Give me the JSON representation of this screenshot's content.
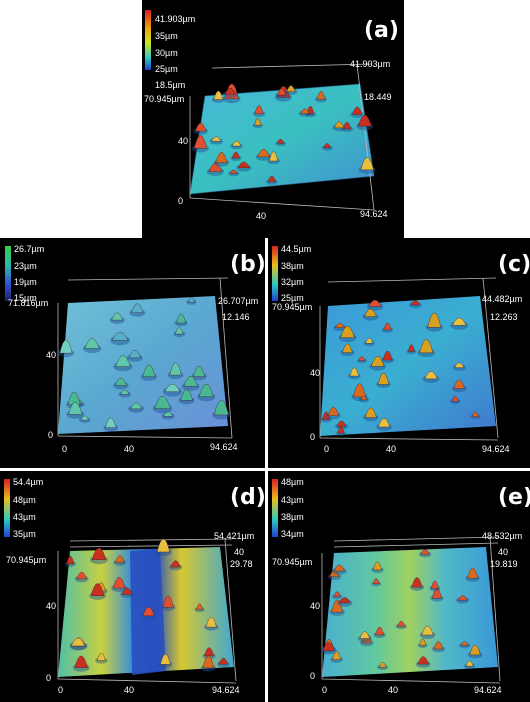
{
  "panels": {
    "a": {
      "label": "(a)",
      "colorbar": [
        "41.903µm",
        "35µm",
        "30µm",
        "25µm",
        "18.5µm"
      ],
      "colors": [
        "#d62020",
        "#f0a010",
        "#c8e820",
        "#30c8c0",
        "#2040d0"
      ],
      "z_top": "41.903µm",
      "z_low": "18.449",
      "y_top": "70.945µm",
      "y_mid": "40",
      "origin": "0",
      "x_mid": "40",
      "x_end": "94.624"
    },
    "b": {
      "label": "(b)",
      "colorbar": [
        "26.7µm",
        "23µm",
        "19µm",
        "15µm"
      ],
      "colors": [
        "#30d040",
        "#30b8b0",
        "#3050d0",
        "#202060"
      ],
      "z_top": "26.707µm",
      "z_low": "12.146",
      "y_top": "71.816µm",
      "y_mid": "40",
      "origin": "0",
      "x_mid": "40",
      "x_end": "94.624"
    },
    "c": {
      "label": "(c)",
      "colorbar": [
        "44.5µm",
        "38µm",
        "32µm",
        "25µm"
      ],
      "colors": [
        "#d62020",
        "#e8c020",
        "#30c8c0",
        "#2040d0"
      ],
      "z_top": "44.482µm",
      "z_low": "12.263",
      "y_top": "70.945µm",
      "y_mid": "40",
      "origin": "0",
      "x_mid": "40",
      "x_end": "94.624"
    },
    "d": {
      "label": "(d)",
      "colorbar": [
        "54.4µm",
        "48µm",
        "43µm",
        "35µm"
      ],
      "colors": [
        "#d62020",
        "#e8c020",
        "#30c8c0",
        "#2040d0"
      ],
      "z_top": "54.421µm",
      "z_mid": "40",
      "z_low": "29.78",
      "y_top": "70.945µm",
      "y_mid": "40",
      "origin": "0",
      "x_mid": "40",
      "x_end": "94.624"
    },
    "e": {
      "label": "(e)",
      "colorbar": [
        "48µm",
        "43µm",
        "38µm",
        "34µm"
      ],
      "colors": [
        "#d62020",
        "#e8c020",
        "#30c8c0",
        "#2040d0"
      ],
      "z_top": "48.532µm",
      "z_mid": "40",
      "z_low": "19.819",
      "y_top": "70.945µm",
      "y_mid": "40",
      "origin": "0",
      "x_mid": "40",
      "x_end": "94.624"
    }
  }
}
